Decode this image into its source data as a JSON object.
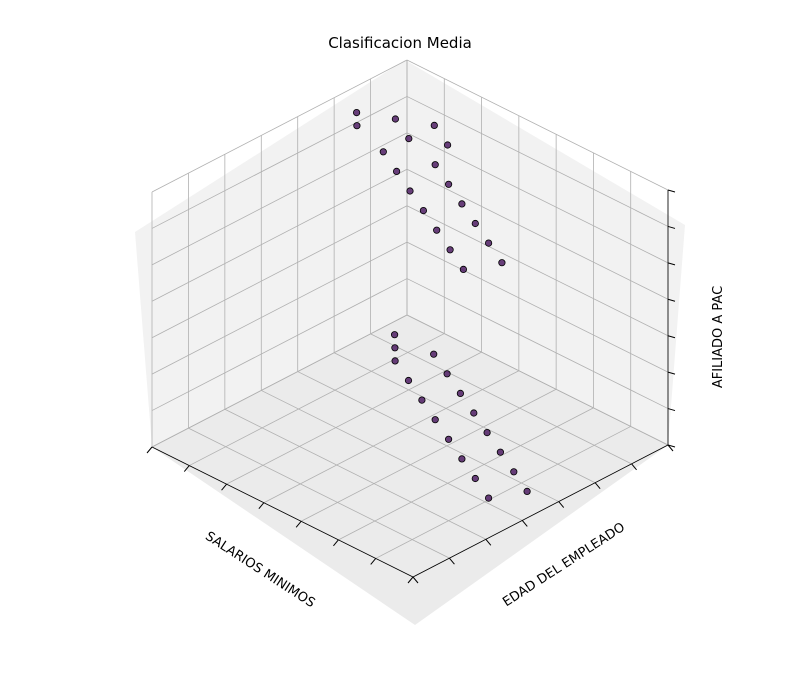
{
  "chart_data": {
    "type": "scatter",
    "projection": "3d",
    "title": "Clasificacion Media",
    "xlabel": "SALARIOS MINIMOS",
    "ylabel": "EDAD DEL EMPLEADO",
    "zlabel": "AFILIADO A PAC",
    "grid": true,
    "point_color": "#44105a",
    "point_edge_color": "#000000",
    "xlim": [
      0,
      1
    ],
    "ylim": [
      0,
      1
    ],
    "zlim": [
      0,
      1
    ],
    "series": [
      {
        "name": "",
        "points": [
          {
            "x": 0.3,
            "y": 0.1,
            "z": 1
          },
          {
            "x": 0.25,
            "y": 0.2,
            "z": 1
          },
          {
            "x": 0.2,
            "y": 0.3,
            "z": 1
          },
          {
            "x": 0.35,
            "y": 0.15,
            "z": 1
          },
          {
            "x": 0.3,
            "y": 0.3,
            "z": 1
          },
          {
            "x": 0.25,
            "y": 0.4,
            "z": 1
          },
          {
            "x": 0.4,
            "y": 0.3,
            "z": 1
          },
          {
            "x": 0.35,
            "y": 0.45,
            "z": 1
          },
          {
            "x": 0.45,
            "y": 0.4,
            "z": 1
          },
          {
            "x": 0.4,
            "y": 0.55,
            "z": 1
          },
          {
            "x": 0.5,
            "y": 0.5,
            "z": 1
          },
          {
            "x": 0.45,
            "y": 0.65,
            "z": 1
          },
          {
            "x": 0.55,
            "y": 0.6,
            "z": 1
          },
          {
            "x": 0.5,
            "y": 0.75,
            "z": 1
          },
          {
            "x": 0.6,
            "y": 0.7,
            "z": 1
          },
          {
            "x": 0.55,
            "y": 0.85,
            "z": 1
          },
          {
            "x": 0.65,
            "y": 0.8,
            "z": 1
          },
          {
            "x": 0.6,
            "y": 0.95,
            "z": 1
          },
          {
            "x": 0.7,
            "y": 0.9,
            "z": 1
          },
          {
            "x": 0.1,
            "y": 0.05,
            "z": 0
          },
          {
            "x": 0.15,
            "y": 0.1,
            "z": 0
          },
          {
            "x": 0.1,
            "y": 0.2,
            "z": 0
          },
          {
            "x": 0.2,
            "y": 0.15,
            "z": 0
          },
          {
            "x": 0.15,
            "y": 0.3,
            "z": 0
          },
          {
            "x": 0.25,
            "y": 0.25,
            "z": 0
          },
          {
            "x": 0.2,
            "y": 0.4,
            "z": 0
          },
          {
            "x": 0.3,
            "y": 0.35,
            "z": 0
          },
          {
            "x": 0.25,
            "y": 0.5,
            "z": 0
          },
          {
            "x": 0.35,
            "y": 0.45,
            "z": 0
          },
          {
            "x": 0.3,
            "y": 0.6,
            "z": 0
          },
          {
            "x": 0.4,
            "y": 0.55,
            "z": 0
          },
          {
            "x": 0.35,
            "y": 0.7,
            "z": 0
          },
          {
            "x": 0.45,
            "y": 0.65,
            "z": 0
          },
          {
            "x": 0.4,
            "y": 0.8,
            "z": 0
          },
          {
            "x": 0.5,
            "y": 0.75,
            "z": 0
          },
          {
            "x": 0.45,
            "y": 0.9,
            "z": 0
          },
          {
            "x": 0.55,
            "y": 0.85,
            "z": 0
          }
        ]
      }
    ]
  }
}
